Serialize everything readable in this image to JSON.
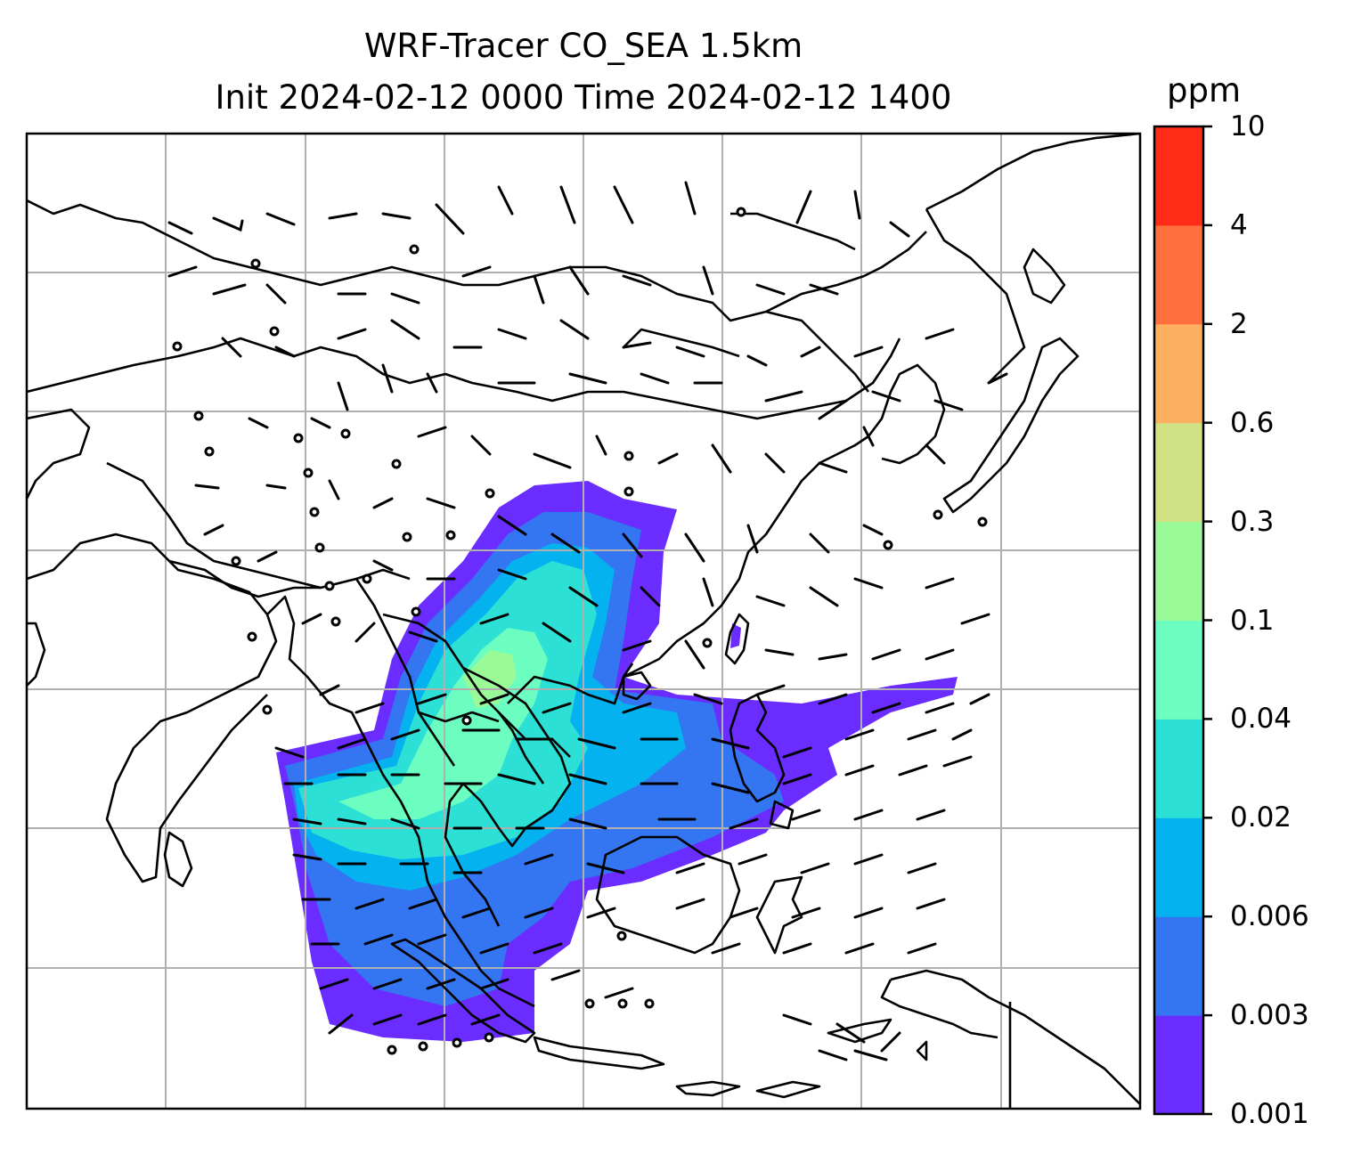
{
  "title": {
    "line1": "WRF-Tracer CO_SEA 1.5km",
    "line2": "Init 2024-02-12 0000 Time 2024-02-12 1400"
  },
  "colorbar": {
    "unit": "ppm",
    "ticks": [
      "0.001",
      "0.003",
      "0.006",
      "0.02",
      "0.04",
      "0.1",
      "0.3",
      "0.6",
      "2",
      "4",
      "10"
    ],
    "colors": [
      "#6a2cff",
      "#3476f2",
      "#03b2ee",
      "#2de0d6",
      "#6cfdc0",
      "#9afa98",
      "#d1e285",
      "#feb061",
      "#ff703e",
      "#ff2d18"
    ]
  },
  "map": {
    "region": "Southeast Asia / East Asia",
    "gridlines": true,
    "features": [
      "coastlines",
      "country-borders",
      "wind-barbs",
      "co-tracer-field"
    ]
  }
}
